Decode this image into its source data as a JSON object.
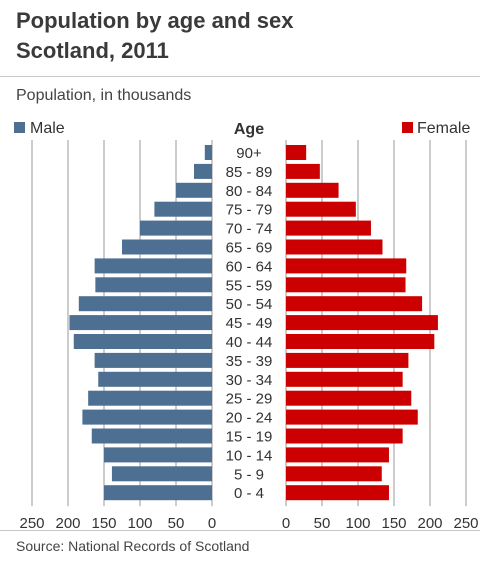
{
  "header": {
    "title_line1": "Population by age and sex",
    "title_line2": "Scotland, 2011",
    "subtitle": "Population, in thousands"
  },
  "footer": {
    "source": "Source:  National Records of Scotland"
  },
  "colors": {
    "male": "#4d6f91",
    "female": "#cc0000",
    "grid": "#9a9a9a"
  },
  "chart_data": {
    "type": "bar",
    "subtype": "population-pyramid",
    "title": "Population by age and sex Scotland, 2011",
    "subtitle": "Population, in thousands",
    "center_label": "Age",
    "categories": [
      "90+",
      "85 - 89",
      "80 - 84",
      "75 - 79",
      "70 - 74",
      "65 - 69",
      "60 - 64",
      "55 - 59",
      "50 - 54",
      "45 - 49",
      "40 - 44",
      "35 - 39",
      "30 - 34",
      "25 - 29",
      "20 - 24",
      "15 - 19",
      "10 - 14",
      "5 - 9",
      "0 - 4"
    ],
    "series": [
      {
        "name": "Male",
        "side": "left",
        "values": [
          10,
          25,
          50,
          80,
          100,
          125,
          163,
          162,
          185,
          198,
          192,
          163,
          158,
          172,
          180,
          167,
          150,
          139,
          150
        ]
      },
      {
        "name": "Female",
        "side": "right",
        "values": [
          28,
          47,
          73,
          97,
          118,
          134,
          167,
          166,
          189,
          211,
          206,
          170,
          162,
          174,
          183,
          162,
          143,
          133,
          143
        ]
      }
    ],
    "xlim": [
      0,
      250
    ],
    "ticks": [
      250,
      200,
      150,
      100,
      50,
      0
    ],
    "grid": true,
    "legend_position": "top"
  }
}
